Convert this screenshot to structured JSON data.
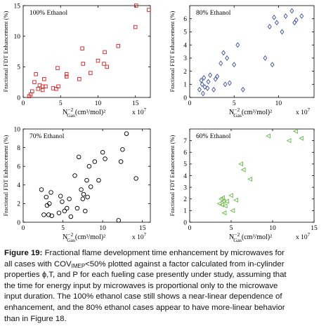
{
  "chart_data": [
    {
      "type": "scatter",
      "annotation": "100% Ethanol",
      "ylabel": "Fractional FDT Enhancement (%)",
      "xlabel": "N",
      "xlabel_sup": "−2",
      "xlabel_sub": "Gas",
      "xlabel_unit": "(cm³/mol)²",
      "x_multiplier": "x 10",
      "x_multiplier_exp": "7",
      "xlim": [
        0,
        17
      ],
      "ylim": [
        0,
        15
      ],
      "xticks": [
        0,
        5,
        10,
        15
      ],
      "yticks": [
        0,
        5,
        10,
        15
      ],
      "color": "#d62020",
      "marker": "square",
      "x": [
        0.8,
        1.0,
        1.2,
        1.5,
        1.7,
        2.0,
        2.2,
        2.6,
        2.6,
        2.8,
        3.0,
        4.0,
        4.4,
        4.6,
        4.7,
        5.8,
        5.8,
        7.5,
        7.9,
        8.0,
        9.0,
        10.0,
        10.8,
        10.9,
        11.2,
        12.7,
        15.0,
        15.1,
        16.8
      ],
      "y": [
        0.2,
        0.5,
        1.0,
        2.5,
        3.8,
        1.4,
        2.0,
        1.8,
        1.2,
        3.0,
        1.8,
        1.5,
        1.4,
        4.8,
        1.8,
        3.4,
        3.8,
        3.0,
        8.0,
        5.5,
        4.0,
        6.0,
        5.5,
        7.4,
        5.0,
        8.4,
        11.5,
        15.0,
        14.3
      ]
    },
    {
      "type": "scatter",
      "annotation": "80% Ethanol",
      "ylabel": "Fractional FDT Enhancement (%)",
      "xlabel": "N",
      "xlabel_sup": "−2",
      "xlabel_sub": "Gas",
      "xlabel_unit": "(cm³/mol)²",
      "x_multiplier": "x 10",
      "x_multiplier_exp": "7",
      "xlim": [
        0,
        14
      ],
      "ylim": [
        0,
        7
      ],
      "xticks": [
        0,
        5,
        10
      ],
      "yticks": [
        0,
        1,
        2,
        3,
        4,
        5,
        6
      ],
      "color": "#3a4fa0",
      "marker": "diamond",
      "x": [
        1.1,
        1.3,
        1.4,
        1.5,
        1.6,
        1.7,
        2.0,
        2.1,
        2.3,
        2.7,
        2.9,
        3.1,
        3.5,
        3.8,
        4.0,
        4.2,
        4.5,
        5.0,
        5.4,
        6.0,
        8.5,
        9.0,
        9.3,
        9.5,
        9.8,
        10.4,
        10.8,
        11.5,
        11.8,
        12.0,
        12.6
      ],
      "y": [
        0.6,
        1.3,
        1.0,
        0.3,
        1.5,
        0.8,
        0.7,
        1.2,
        1.7,
        0.6,
        1.4,
        1.6,
        2.6,
        3.4,
        1.0,
        3.0,
        1.1,
        2.5,
        4.0,
        0.6,
        3.0,
        5.4,
        2.5,
        6.1,
        5.7,
        5.0,
        6.2,
        6.6,
        5.7,
        5.9,
        6.2
      ]
    },
    {
      "type": "scatter",
      "annotation": "70% Ethanol",
      "ylabel": "Fractional FDT Enhancement (%)",
      "xlabel": "N",
      "xlabel_sup": "−2",
      "xlabel_sub": "Gas",
      "xlabel_unit": "(cm³/mol)²",
      "x_multiplier": "x 10",
      "x_multiplier_exp": "7",
      "xlim": [
        0,
        16
      ],
      "ylim": [
        0,
        10
      ],
      "xticks": [
        0,
        5,
        10,
        15
      ],
      "yticks": [
        0,
        2,
        4,
        6,
        8,
        10
      ],
      "color": "#000000",
      "marker": "circle",
      "x": [
        2.3,
        2.6,
        2.9,
        3.0,
        3.2,
        3.3,
        3.5,
        3.6,
        4.5,
        4.7,
        4.9,
        5.2,
        5.5,
        5.8,
        6.0,
        6.5,
        6.8,
        7.0,
        7.3,
        7.5,
        7.6,
        7.8,
        8.0,
        8.1,
        8.3,
        8.5,
        9.0,
        9.5,
        10.0,
        10.3,
        12.0,
        12.3,
        12.5,
        13.0,
        14.2
      ],
      "y": [
        3.5,
        0.8,
        2.7,
        1.8,
        0.8,
        2.0,
        3.2,
        0.7,
        1.0,
        2.8,
        2.2,
        1.2,
        1.5,
        2.5,
        0.6,
        5.0,
        1.5,
        7.0,
        3.5,
        2.5,
        3.0,
        1.2,
        4.5,
        2.7,
        6.0,
        3.8,
        6.5,
        4.5,
        7.5,
        6.8,
        0.2,
        6.5,
        7.8,
        9.5,
        4.7
      ]
    },
    {
      "type": "scatter",
      "annotation": "60% Ethanol",
      "ylabel": "Fractional FDT Enhancement (%)",
      "xlabel": "N",
      "xlabel_sup": "−2",
      "xlabel_sub": "Gas",
      "xlabel_unit": "(cm³/mol)²",
      "x_multiplier": "x 10",
      "x_multiplier_exp": "7",
      "xlim": [
        0,
        15
      ],
      "ylim": [
        0,
        8
      ],
      "xticks": [
        0,
        5,
        10,
        15
      ],
      "yticks": [
        0,
        1,
        2,
        3,
        4,
        5,
        6,
        7
      ],
      "color": "#66bb44",
      "marker": "triangle-left",
      "x": [
        3.6,
        3.8,
        3.9,
        4.0,
        4.1,
        4.2,
        4.3,
        4.5,
        5.0,
        5.2,
        5.6,
        6.2,
        6.5,
        7.3,
        9.5,
        12.0,
        12.8,
        13.5
      ],
      "y": [
        1.6,
        2.0,
        1.5,
        2.1,
        1.8,
        0.8,
        1.4,
        1.8,
        2.3,
        1.0,
        1.9,
        5.0,
        4.5,
        3.7,
        7.4,
        7.0,
        7.8,
        7.2
      ]
    }
  ],
  "caption": {
    "fig_label": "Figure 19:",
    "line1_a": " Fractional flame development time enhancement by microwaves for",
    "line2_a": "all cases with COV",
    "line2_sub": "IMEP",
    "line2_b": "<50% plotted against a factor calculated from in-cylinder",
    "line3": "properties ɸ,T, and P for each fueling case presently under study, assuming that",
    "line4": "the time for energy input by microwaves is proportional only to the microwave",
    "line5": "input duration. The 100% ethanol case still shows a near-linear dependence of",
    "line6": "enhancement, and the 80% ethanol cases appear to have more-linear behavior",
    "line7": "than in Figure 18."
  }
}
